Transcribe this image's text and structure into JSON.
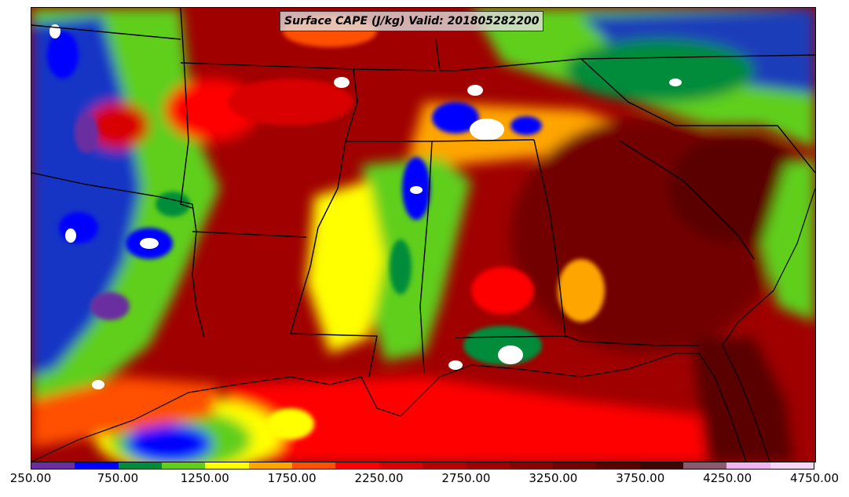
{
  "map": {
    "title": "Surface CAPE (J/kg) Valid: 201805282200",
    "field": "Surface CAPE",
    "units": "J/kg",
    "valid_time": "201805282200",
    "region": "Southeastern United States and Gulf of Mexico"
  },
  "colorbar": {
    "min": 250,
    "max": 4750,
    "interval": 250,
    "colors": [
      "#6a2ea0",
      "#0000ff",
      "#008c3a",
      "#5fcf1a",
      "#ffff00",
      "#ffa500",
      "#ff5000",
      "#ff0000",
      "#d80000",
      "#b80000",
      "#a00000",
      "#8b0000",
      "#730000",
      "#5a0000",
      "#3f0505",
      "#8a5a6e",
      "#f0b4f0",
      "#f8d6f8"
    ],
    "tick_labels": [
      "250.00",
      "750.00",
      "1250.00",
      "1750.00",
      "2250.00",
      "2750.00",
      "3250.00",
      "3750.00",
      "4250.00",
      "4750.00"
    ]
  }
}
